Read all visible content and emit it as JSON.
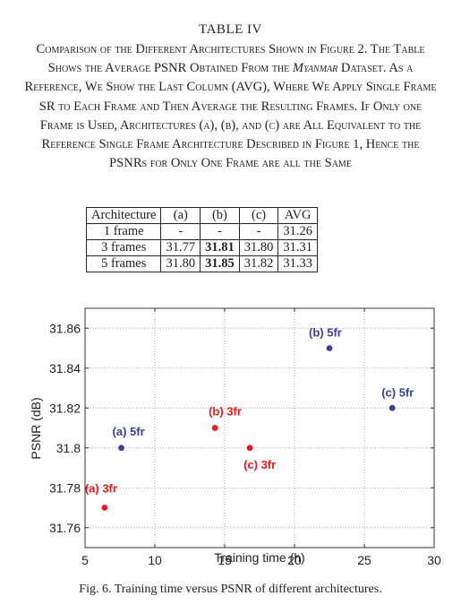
{
  "table": {
    "title": "TABLE IV",
    "caption_parts": [
      "Comparison of the Different Architectures Shown in Figure 2. The Table Shows the Average PSNR Obtained From the ",
      "Myanmar",
      " Dataset. As a Reference, We Show the Last Column (AVG), Where We Apply Single Frame SR to Each Frame and Then Average the Resulting Frames. If Only one Frame is Used, Architectures (a), (b), and (c) are All Equivalent to the Reference Single Frame Architecture Described in Figure 1, Hence the PSNRs for Only One Frame are all the Same"
    ],
    "headers": [
      "Architecture",
      "(a)",
      "(b)",
      "(c)",
      "AVG"
    ],
    "rows": [
      {
        "label": "1 frame",
        "a": "-",
        "b": "-",
        "c": "-",
        "avg": "31.26"
      },
      {
        "label": "3 frames",
        "a": "31.77",
        "b": "31.81",
        "c": "31.80",
        "avg": "31.31"
      },
      {
        "label": "5 frames",
        "a": "31.80",
        "b": "31.85",
        "c": "31.82",
        "avg": "31.33"
      }
    ]
  },
  "chart_data": {
    "type": "scatter",
    "title": "",
    "xlabel": "Training time (h)",
    "ylabel": "PSNR (dB)",
    "xlim": [
      5,
      30
    ],
    "ylim": [
      31.75,
      31.87
    ],
    "xticks": [
      5,
      10,
      15,
      20,
      25,
      30
    ],
    "yticks": [
      31.76,
      31.78,
      31.8,
      31.82,
      31.84,
      31.86
    ],
    "ytick_labels": [
      "31.76",
      "31.78",
      "31.8",
      "31.82",
      "31.84",
      "31.86"
    ],
    "grid": true,
    "points": [
      {
        "label": "(a) 3fr",
        "x": 6.4,
        "y": 31.77,
        "color": "#e8191f"
      },
      {
        "label": "(a) 5fr",
        "x": 7.6,
        "y": 31.8,
        "color": "#3a3f9a"
      },
      {
        "label": "(b) 3fr",
        "x": 14.3,
        "y": 31.81,
        "color": "#e8191f"
      },
      {
        "label": "(b) 5fr",
        "x": 22.5,
        "y": 31.85,
        "color": "#3a3f9a"
      },
      {
        "label": "(c) 3fr",
        "x": 16.8,
        "y": 31.8,
        "color": "#e8191f"
      },
      {
        "label": "(c) 5fr",
        "x": 27.0,
        "y": 31.82,
        "color": "#3a3f9a"
      }
    ]
  },
  "figure": {
    "caption": "Fig. 6.  Training time versus PSNR of different architectures."
  }
}
